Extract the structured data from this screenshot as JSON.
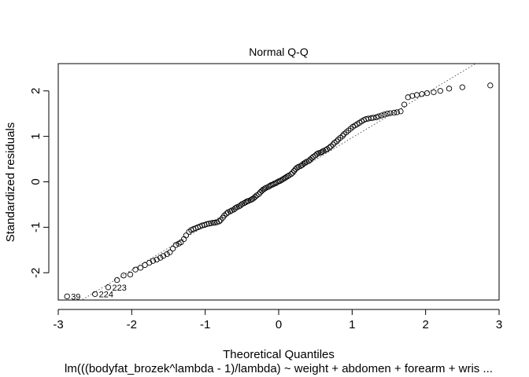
{
  "chart_data": {
    "type": "scatter",
    "title": "Normal Q-Q",
    "xlabel": "Theoretical Quantiles",
    "ylabel": "Standardized residuals",
    "subtitle": "lm(((bodyfat_brozek^lambda - 1)/lambda) ~ weight + abdomen + forearm + wris ...",
    "xlim": [
      -3,
      3
    ],
    "ylim": [
      -2.6,
      2.6
    ],
    "xticks": [
      -3,
      -2,
      -1,
      0,
      1,
      2,
      3
    ],
    "yticks": [
      -2,
      -1,
      0,
      1,
      2
    ],
    "grid": false,
    "reference_line": {
      "slope": 0.97,
      "intercept": 0.0,
      "style": "dotted"
    },
    "outlier_labels": [
      {
        "text": "39",
        "x": -2.88,
        "y": -2.52
      },
      {
        "text": "224",
        "x": -2.5,
        "y": -2.47
      },
      {
        "text": "223",
        "x": -2.32,
        "y": -2.32
      }
    ],
    "series": [
      {
        "x": [
          -2.88,
          -2.5,
          -2.32,
          -2.2,
          -2.11,
          -2.02,
          -1.95,
          -1.88,
          -1.82,
          -1.76,
          -1.71,
          -1.66,
          -1.61,
          -1.57,
          -1.52,
          -1.48,
          -1.44,
          -1.4,
          -1.36,
          -1.33,
          -1.29,
          -1.26,
          -1.22,
          -1.19,
          -1.16,
          -1.13,
          -1.1,
          -1.07,
          -1.04,
          -1.01,
          -0.98,
          -0.95,
          -0.92,
          -0.89,
          -0.87,
          -0.84,
          -0.81,
          -0.79,
          -0.76,
          -0.74,
          -0.71,
          -0.69,
          -0.66,
          -0.64,
          -0.61,
          -0.59,
          -0.57,
          -0.54,
          -0.52,
          -0.5,
          -0.47,
          -0.45,
          -0.43,
          -0.41,
          -0.38,
          -0.36,
          -0.34,
          -0.32,
          -0.3,
          -0.27,
          -0.25,
          -0.23,
          -0.21,
          -0.19,
          -0.17,
          -0.14,
          -0.12,
          -0.1,
          -0.08,
          -0.06,
          -0.04,
          -0.02,
          0.0,
          0.02,
          0.04,
          0.06,
          0.08,
          0.1,
          0.12,
          0.14,
          0.17,
          0.19,
          0.21,
          0.23,
          0.25,
          0.27,
          0.3,
          0.32,
          0.34,
          0.36,
          0.38,
          0.41,
          0.43,
          0.45,
          0.47,
          0.5,
          0.52,
          0.54,
          0.57,
          0.59,
          0.61,
          0.64,
          0.66,
          0.69,
          0.71,
          0.74,
          0.76,
          0.79,
          0.81,
          0.84,
          0.87,
          0.89,
          0.92,
          0.95,
          0.98,
          1.01,
          1.04,
          1.07,
          1.1,
          1.13,
          1.16,
          1.19,
          1.22,
          1.26,
          1.29,
          1.33,
          1.36,
          1.4,
          1.44,
          1.48,
          1.52,
          1.57,
          1.61,
          1.66,
          1.71,
          1.76,
          1.82,
          1.88,
          1.95,
          2.02,
          2.11,
          2.2,
          2.32,
          2.5,
          2.88
        ],
        "y": [
          -2.52,
          -2.47,
          -2.32,
          -2.16,
          -2.06,
          -2.04,
          -1.93,
          -1.89,
          -1.83,
          -1.78,
          -1.74,
          -1.71,
          -1.67,
          -1.63,
          -1.59,
          -1.55,
          -1.47,
          -1.39,
          -1.36,
          -1.33,
          -1.26,
          -1.18,
          -1.1,
          -1.06,
          -1.04,
          -1.02,
          -1.0,
          -0.98,
          -0.96,
          -0.95,
          -0.93,
          -0.92,
          -0.91,
          -0.9,
          -0.9,
          -0.89,
          -0.87,
          -0.84,
          -0.79,
          -0.74,
          -0.7,
          -0.67,
          -0.65,
          -0.63,
          -0.61,
          -0.58,
          -0.56,
          -0.54,
          -0.52,
          -0.49,
          -0.47,
          -0.45,
          -0.43,
          -0.42,
          -0.4,
          -0.38,
          -0.36,
          -0.33,
          -0.3,
          -0.27,
          -0.23,
          -0.2,
          -0.17,
          -0.15,
          -0.13,
          -0.11,
          -0.09,
          -0.07,
          -0.06,
          -0.04,
          -0.03,
          -0.01,
          0.01,
          0.02,
          0.04,
          0.06,
          0.08,
          0.1,
          0.12,
          0.14,
          0.17,
          0.2,
          0.24,
          0.28,
          0.31,
          0.33,
          0.35,
          0.37,
          0.4,
          0.42,
          0.44,
          0.46,
          0.49,
          0.52,
          0.55,
          0.58,
          0.61,
          0.63,
          0.64,
          0.66,
          0.68,
          0.7,
          0.72,
          0.75,
          0.78,
          0.82,
          0.86,
          0.89,
          0.93,
          0.97,
          1.01,
          1.05,
          1.09,
          1.13,
          1.17,
          1.21,
          1.24,
          1.27,
          1.3,
          1.33,
          1.36,
          1.38,
          1.39,
          1.4,
          1.41,
          1.42,
          1.44,
          1.46,
          1.48,
          1.5,
          1.51,
          1.52,
          1.53,
          1.55,
          1.7,
          1.86,
          1.89,
          1.91,
          1.93,
          1.95,
          1.97,
          2.0,
          2.05,
          2.08,
          2.12
        ]
      }
    ]
  }
}
